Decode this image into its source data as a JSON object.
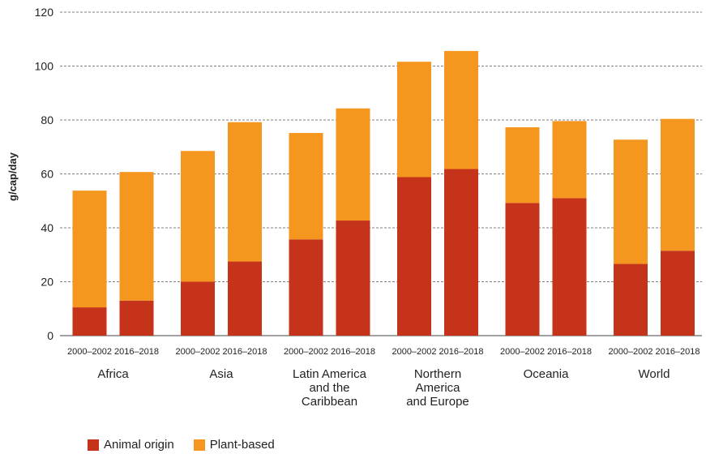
{
  "chart_data": {
    "type": "bar",
    "stacked": true,
    "ylabel": "g/cap/day",
    "ylim": [
      0,
      120
    ],
    "yticks": [
      0,
      20,
      40,
      60,
      80,
      100,
      120
    ],
    "grid": "horizontal-dashed",
    "legend_position": "bottom-left",
    "groups": [
      {
        "label": [
          "Africa"
        ],
        "bars": [
          {
            "period": "2000–2002",
            "animal": 10.5,
            "plant": 43.3
          },
          {
            "period": "2016–2018",
            "animal": 13.0,
            "plant": 47.7
          }
        ]
      },
      {
        "label": [
          "Asia"
        ],
        "bars": [
          {
            "period": "2000–2002",
            "animal": 20.0,
            "plant": 48.5
          },
          {
            "period": "2016–2018",
            "animal": 27.5,
            "plant": 51.7
          }
        ]
      },
      {
        "label": [
          "Latin America",
          "and the",
          "Caribbean"
        ],
        "bars": [
          {
            "period": "2000–2002",
            "animal": 35.7,
            "plant": 39.5
          },
          {
            "period": "2016–2018",
            "animal": 42.7,
            "plant": 41.6
          }
        ]
      },
      {
        "label": [
          "Northern",
          "America",
          "and Europe"
        ],
        "bars": [
          {
            "period": "2000–2002",
            "animal": 58.8,
            "plant": 42.8
          },
          {
            "period": "2016–2018",
            "animal": 61.8,
            "plant": 43.8
          }
        ]
      },
      {
        "label": [
          "Oceania"
        ],
        "bars": [
          {
            "period": "2000–2002",
            "animal": 49.2,
            "plant": 28.1
          },
          {
            "period": "2016–2018",
            "animal": 51.0,
            "plant": 28.6
          }
        ]
      },
      {
        "label": [
          "World"
        ],
        "bars": [
          {
            "period": "2000–2002",
            "animal": 26.6,
            "plant": 46.1
          },
          {
            "period": "2016–2018",
            "animal": 31.5,
            "plant": 48.9
          }
        ]
      }
    ],
    "series": [
      {
        "name": "Animal origin",
        "key": "animal",
        "color": "#C4331A"
      },
      {
        "name": "Plant-based",
        "key": "plant",
        "color": "#F5961E"
      }
    ]
  }
}
